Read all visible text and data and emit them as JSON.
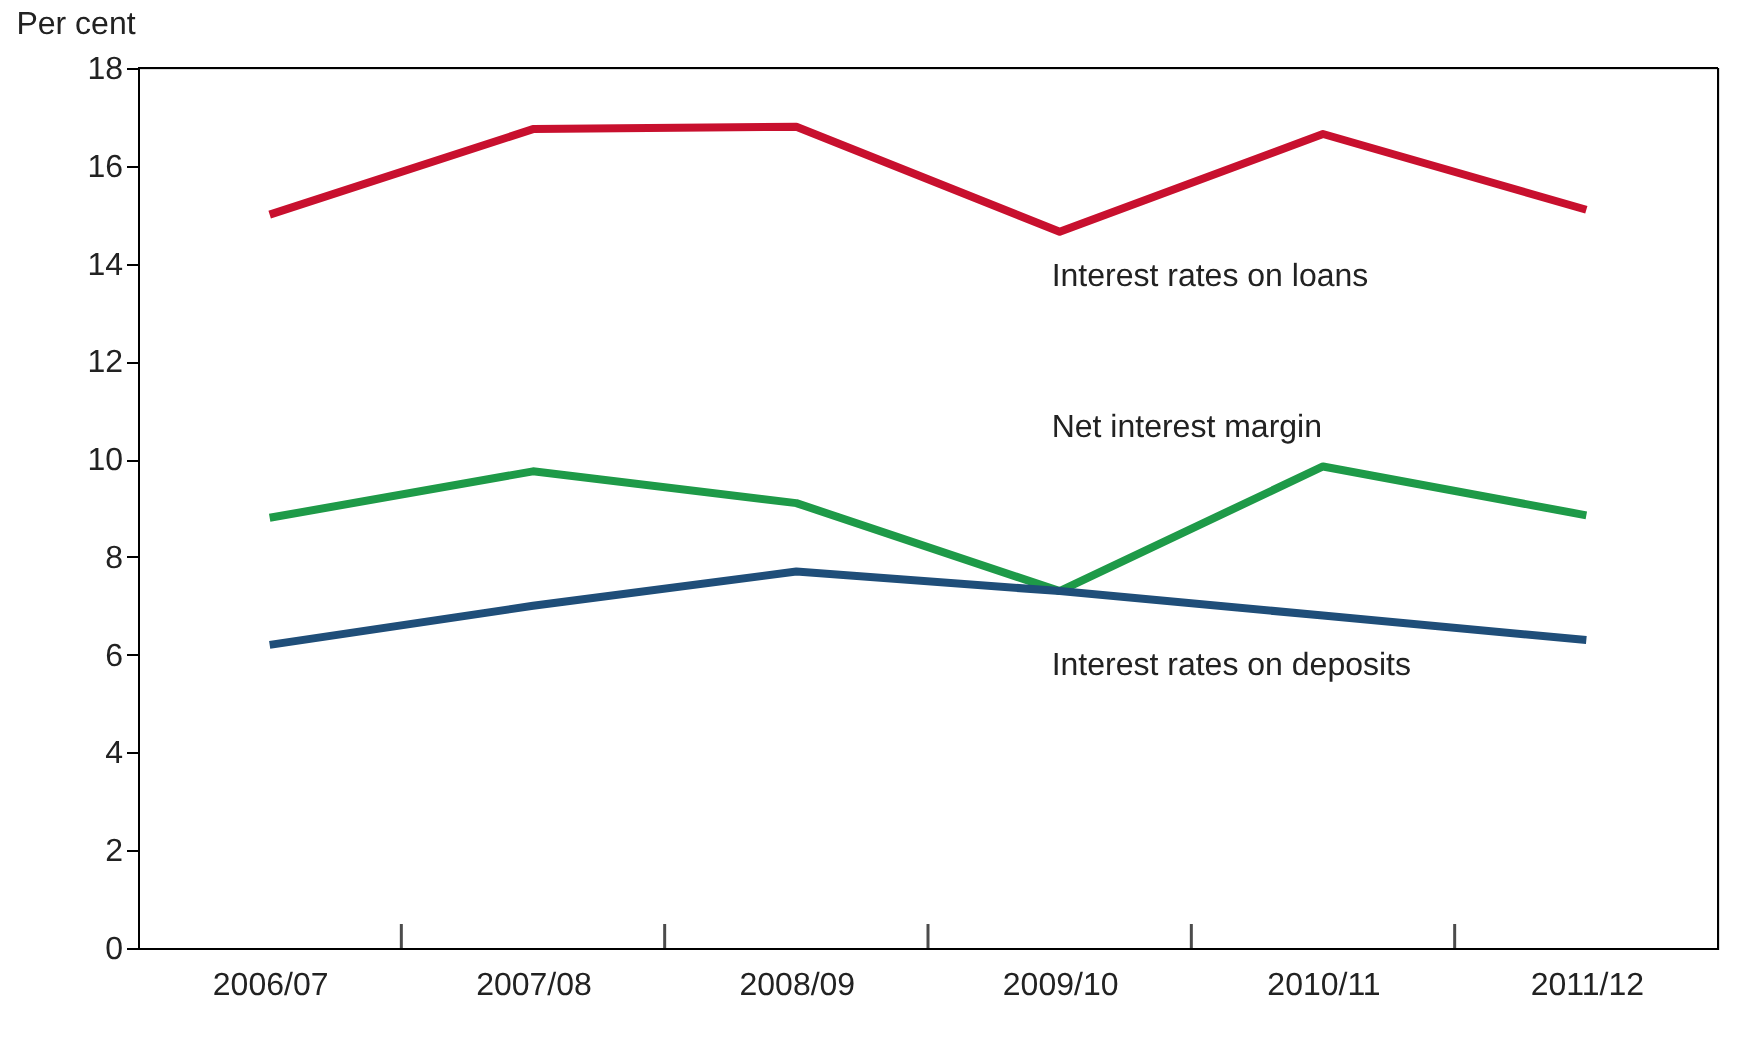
{
  "chart_data": {
    "type": "line",
    "ylabel": "Per cent",
    "categories": [
      "2006/07",
      "2007/08",
      "2008/09",
      "2009/10",
      "2010/11",
      "2011/12"
    ],
    "series": [
      {
        "name": "Interest rates on loans",
        "color": "#c8102e",
        "values": [
          15.0,
          16.75,
          16.8,
          14.65,
          16.65,
          15.1
        ]
      },
      {
        "name": "Net interest margin",
        "color": "#1e9a48",
        "values": [
          8.8,
          9.75,
          9.1,
          7.3,
          9.85,
          8.85
        ]
      },
      {
        "name": "Interest rates on deposits",
        "color": "#1f4e79",
        "values": [
          6.2,
          7.0,
          7.7,
          7.3,
          6.8,
          6.3
        ]
      }
    ],
    "ylim": [
      0,
      18
    ],
    "yticks": [
      0,
      2,
      4,
      6,
      8,
      10,
      12,
      14,
      16,
      18
    ],
    "grid": false,
    "legend": false,
    "marker": "none",
    "line_style": "solid"
  }
}
